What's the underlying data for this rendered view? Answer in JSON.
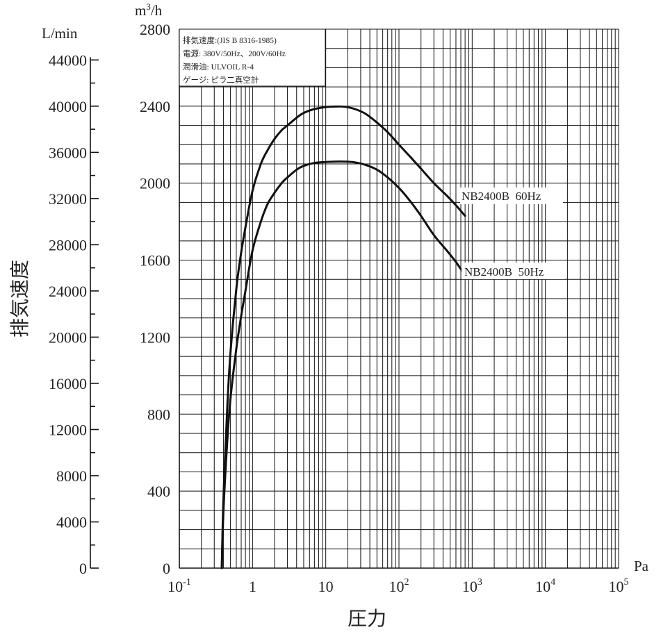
{
  "chart_data": {
    "type": "line",
    "title": "",
    "xlabel": "圧力",
    "x_unit": "Pa",
    "x_scale": "log",
    "xlim": [
      0.1,
      100000
    ],
    "x_tick_labels": [
      {
        "base": "10",
        "exp": "-1"
      },
      {
        "base": "1",
        "exp": ""
      },
      {
        "base": "10",
        "exp": ""
      },
      {
        "base": "10",
        "exp": "2"
      },
      {
        "base": "10",
        "exp": "3"
      },
      {
        "base": "10",
        "exp": "4"
      },
      {
        "base": "10",
        "exp": "5"
      }
    ],
    "ylabel": "排気速度",
    "y_unit": {
      "base": "m",
      "sup": "3",
      "suffix": "/h"
    },
    "ylim": [
      0,
      2800
    ],
    "y_ticks": [
      "0",
      "400",
      "800",
      "1200",
      "1600",
      "2000",
      "2400",
      "2800"
    ],
    "y2_unit": "L/min",
    "y2_ticks": [
      "0",
      "4000",
      "8000",
      "12000",
      "16000",
      "20000",
      "24000",
      "28000",
      "32000",
      "36000",
      "40000",
      "44000"
    ],
    "grid": true,
    "info_box": {
      "lines": [
        "排気速度:(JIS B 8316-1985)",
        "電源: 380V/50Hz、200V/60Hz",
        "潤滑油: ULVOIL R-4",
        "ゲージ: ピラ二真空計"
      ],
      "placement": "top-left"
    },
    "series": [
      {
        "name": "NB2400B  60Hz",
        "x": [
          0.38,
          0.4,
          0.45,
          0.5,
          0.6,
          0.7,
          0.8,
          1.0,
          1.3,
          1.6,
          2,
          2.5,
          3,
          4,
          5,
          7,
          10,
          14,
          18,
          25,
          35,
          50,
          70,
          100,
          140,
          200,
          300,
          450,
          600,
          800
        ],
        "y": [
          0,
          350,
          820,
          1120,
          1450,
          1640,
          1770,
          1960,
          2100,
          2170,
          2230,
          2275,
          2300,
          2340,
          2365,
          2385,
          2395,
          2398,
          2397,
          2385,
          2360,
          2315,
          2265,
          2200,
          2140,
          2075,
          2000,
          1935,
          1885,
          1830
        ]
      },
      {
        "name": "NB2400B  50Hz",
        "x": [
          0.38,
          0.4,
          0.45,
          0.5,
          0.6,
          0.7,
          0.8,
          1.0,
          1.3,
          1.6,
          2,
          2.5,
          3,
          4,
          5,
          7,
          10,
          14,
          18,
          25,
          35,
          50,
          70,
          100,
          140,
          200,
          300,
          450,
          600,
          800
        ],
        "y": [
          0,
          290,
          650,
          880,
          1140,
          1310,
          1440,
          1650,
          1800,
          1890,
          1950,
          2000,
          2030,
          2070,
          2090,
          2105,
          2110,
          2112,
          2112,
          2108,
          2095,
          2070,
          2030,
          1975,
          1910,
          1830,
          1730,
          1650,
          1590,
          1520
        ]
      }
    ]
  }
}
